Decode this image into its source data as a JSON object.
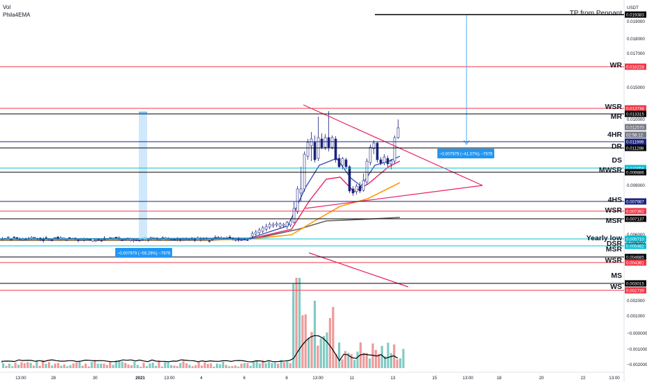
{
  "legend": {
    "vol": "Vol",
    "ema": "Phila4EMA"
  },
  "axis": {
    "currency": "USDT",
    "y_ticks": [
      "0.019000",
      "0.018000",
      "0.017000",
      "0.015000",
      "0.010000",
      "0.009000",
      "0.006000",
      "0.005000",
      "0.002000",
      "0.001000",
      "−0.000000",
      "−0.001000",
      "−0.002000"
    ],
    "x_ticks": [
      "13:00",
      "28",
      "30",
      "2021",
      "13:00",
      "4",
      "6",
      "8",
      "13:00",
      "11",
      "13",
      "15",
      "13:00",
      "18",
      "20",
      "22",
      "13:00"
    ]
  },
  "levels": [
    {
      "label": "TP from Pennant",
      "price": "0.019383",
      "color": "#000000",
      "tag": "#000000"
    },
    {
      "label": "WR",
      "price": "0.016228",
      "color": "#f23645",
      "tag": "#f23645"
    },
    {
      "label": "WSR",
      "price": "0.013738",
      "color": "#f23645",
      "tag": "#f23645"
    },
    {
      "label": "MR",
      "price": "0.013315",
      "color": "#000000",
      "tag": "#000000"
    },
    {
      "label": "",
      "price": "0.012570",
      "color": "#787b86",
      "tag": "#787b86"
    },
    {
      "label": "",
      "price": "02:58:12",
      "color": "#787b86",
      "tag": "#787b86"
    },
    {
      "label": "4HR",
      "price": "0.011999",
      "color": "#1a237e",
      "tag": "#1a237e"
    },
    {
      "label": "DR",
      "price": "0.011288",
      "color": "#000000",
      "tag": "#000000"
    },
    {
      "label": "DS",
      "price": "0.010058",
      "color": "#00bcd4",
      "tag": "#00bcd4"
    },
    {
      "label": "MWSR",
      "price": "0.009886",
      "color": "#000000",
      "tag": "#000000"
    },
    {
      "label": "4HS",
      "price": "0.007987",
      "color": "#1a237e",
      "tag": "#1a237e"
    },
    {
      "label": "WSR",
      "price": "0.007392",
      "color": "#f23645",
      "tag": "#f23645"
    },
    {
      "label": "MSR",
      "price": "0.007137",
      "color": "#000000",
      "tag": "#000000"
    },
    {
      "label": "Yearly low",
      "price": "0.005710",
      "color": "#00bcd4",
      "tag": "#00bcd4"
    },
    {
      "label": "DSR",
      "price": "0.005482",
      "color": "#00bcd4",
      "tag": "#00bcd4"
    },
    {
      "label": "MSR",
      "price": "0.004685",
      "color": "#000000",
      "tag": "#000000"
    },
    {
      "label": "WSR",
      "price": "0.004381",
      "color": "#f23645",
      "tag": "#f23645"
    },
    {
      "label": "MS",
      "price": "0.003015",
      "color": "#000000",
      "tag": "#000000"
    },
    {
      "label": "WS",
      "price": "0.002739",
      "color": "#f23645",
      "tag": "#f23645"
    }
  ],
  "measures": [
    {
      "text": "−0.007979 (−41.07%) −7979"
    },
    {
      "text": "−0.007979 (−59.29%) −7979"
    }
  ],
  "chart_data": {
    "type": "candlestick",
    "indicators": [
      "Vol",
      "Phila4EMA"
    ],
    "price_range": [
      0.0027,
      0.0195
    ],
    "last_price": 0.01257,
    "candles": [],
    "note": ""
  }
}
